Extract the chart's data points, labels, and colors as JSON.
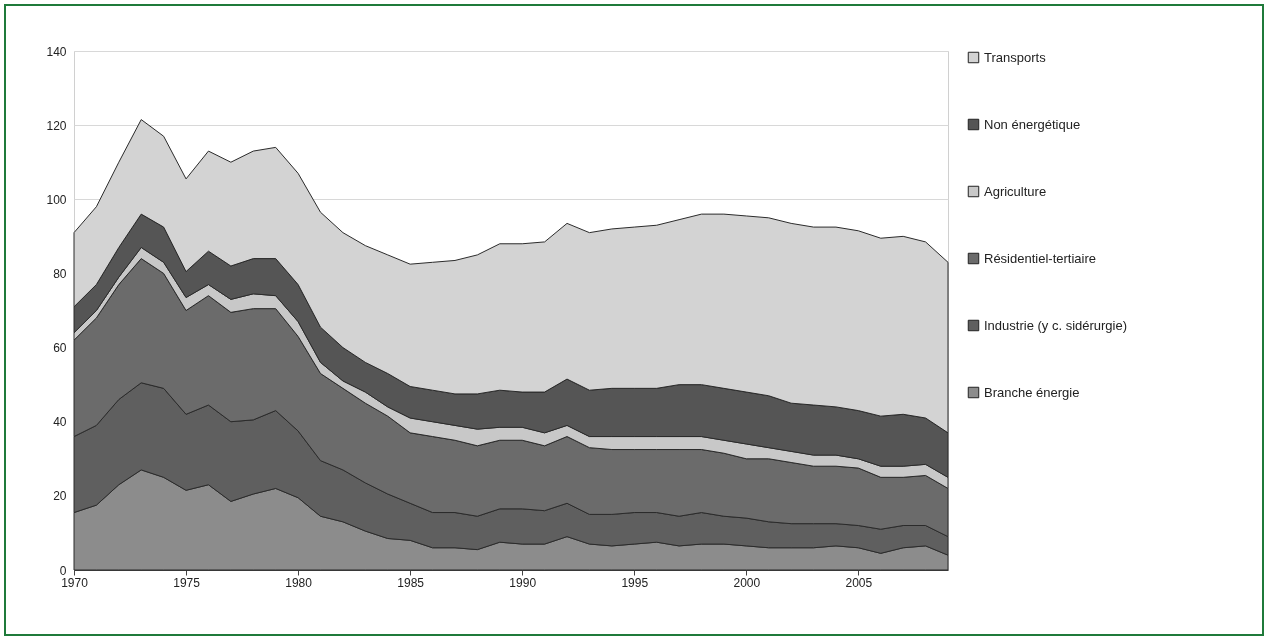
{
  "chart_data": {
    "type": "area",
    "stacked": true,
    "x": [
      1970,
      1971,
      1972,
      1973,
      1974,
      1975,
      1976,
      1977,
      1978,
      1979,
      1980,
      1981,
      1982,
      1983,
      1984,
      1985,
      1986,
      1987,
      1988,
      1989,
      1990,
      1991,
      1992,
      1993,
      1994,
      1995,
      1996,
      1997,
      1998,
      1999,
      2000,
      2001,
      2002,
      2003,
      2004,
      2005,
      2006,
      2007,
      2008,
      2009
    ],
    "xlim": [
      1970,
      2009
    ],
    "xticks": [
      1970,
      1975,
      1980,
      1985,
      1990,
      1995,
      2000,
      2005
    ],
    "ylim": [
      0,
      140
    ],
    "yticks": [
      0,
      20,
      40,
      60,
      80,
      100,
      120,
      140
    ],
    "grid": "y",
    "legend": "right",
    "series": [
      {
        "name": "Branche énergie",
        "color": "#8c8c8c",
        "values": [
          15.5,
          17.5,
          23,
          27,
          25,
          21.5,
          23,
          18.5,
          20.5,
          22,
          19.5,
          14.5,
          13,
          10.5,
          8.5,
          8,
          6,
          6,
          5.5,
          7.5,
          7,
          7,
          9,
          7,
          6.5,
          7,
          7.5,
          6.5,
          7,
          7,
          6.5,
          6,
          6,
          6,
          6.5,
          6,
          4.5,
          6,
          6.5,
          4
        ]
      },
      {
        "name": "Industrie (y c. sidérurgie)",
        "color": "#5f5f5f",
        "values": [
          20.5,
          21.5,
          23,
          23.5,
          24,
          20.5,
          21.5,
          21.5,
          20,
          21,
          18,
          15,
          14,
          13,
          12,
          10,
          9.5,
          9.5,
          9,
          9,
          9.5,
          9,
          9,
          8,
          8.5,
          8.5,
          8,
          8,
          8.5,
          7.5,
          7.5,
          7,
          6.5,
          6.5,
          6,
          6,
          6.5,
          6,
          5.5,
          5
        ]
      },
      {
        "name": "Résidentiel-tertiaire",
        "color": "#6b6b6b",
        "values": [
          26,
          29,
          31,
          33.5,
          31,
          28,
          29.5,
          29.5,
          30,
          27.5,
          25.5,
          23.5,
          22,
          21.5,
          21,
          19,
          20.5,
          19.5,
          19,
          18.5,
          18.5,
          17.5,
          18,
          18,
          17.5,
          17,
          17,
          18,
          17,
          17,
          16,
          17,
          16.5,
          15.5,
          15.5,
          15.5,
          14,
          13,
          13.5,
          13
        ]
      },
      {
        "name": "Agriculture",
        "color": "#c8c8c8",
        "values": [
          2,
          2,
          2,
          3,
          3,
          3.5,
          3,
          3.5,
          4,
          3.5,
          4,
          3,
          2,
          3,
          2.5,
          4,
          4,
          4,
          4.5,
          3.5,
          3.5,
          3.5,
          3,
          3,
          3.5,
          3.5,
          3.5,
          3.5,
          3.5,
          3.5,
          4,
          3,
          3,
          3,
          3,
          2.5,
          3,
          3,
          3,
          3
        ]
      },
      {
        "name": "Non énergétique",
        "color": "#555555",
        "values": [
          7,
          7,
          8,
          9,
          9.5,
          7,
          9,
          9,
          9.5,
          10,
          10,
          9.5,
          9,
          8,
          9,
          8.5,
          8.5,
          8.5,
          9.5,
          10,
          9.5,
          11,
          12.5,
          12.5,
          13,
          13,
          13,
          14,
          14,
          14,
          14,
          14,
          13,
          13.5,
          13,
          13,
          13.5,
          14,
          12.5,
          12
        ]
      },
      {
        "name": "Transports",
        "color": "#d3d3d3",
        "values": [
          20,
          21,
          23,
          25.5,
          24.5,
          25,
          27,
          28,
          29,
          30,
          30,
          31,
          31,
          31.5,
          32,
          33,
          34.5,
          36,
          37.5,
          39.5,
          40,
          40.5,
          42,
          42.5,
          43,
          43.5,
          44,
          44.5,
          46,
          47,
          47.5,
          48,
          48.5,
          48,
          48.5,
          48.5,
          48,
          48,
          47.5,
          46
        ]
      }
    ]
  }
}
